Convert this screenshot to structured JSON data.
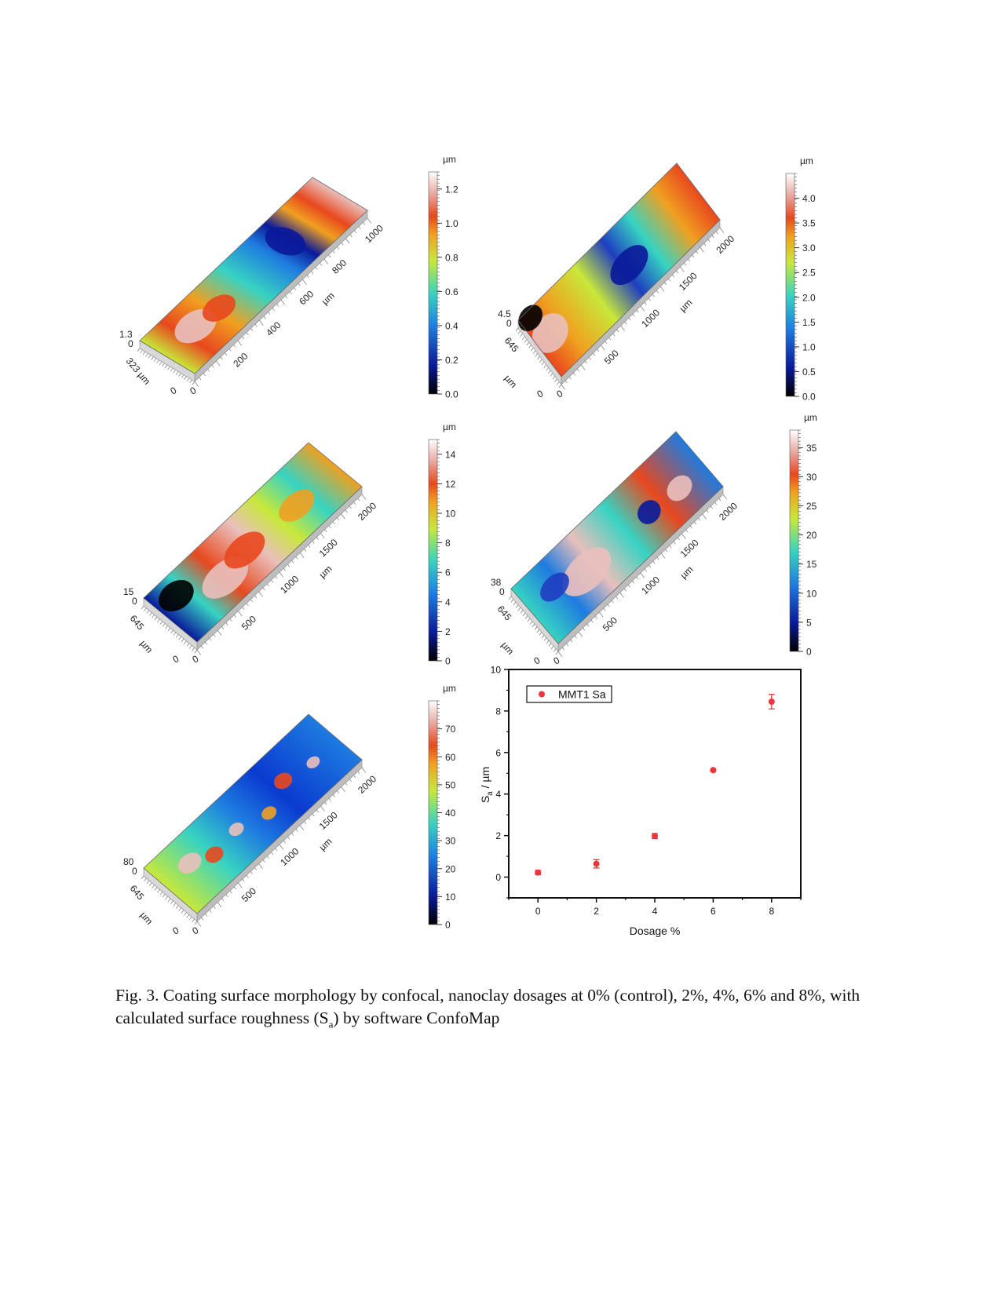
{
  "panels": [
    {
      "dosage_pct": 0,
      "height_label": "1.3",
      "zero_label": "0",
      "width_label": "323",
      "unit_left": "µm",
      "unit_axis": "µm",
      "origin_labels": [
        "0",
        "0"
      ],
      "length_ticks": [
        "200",
        "400",
        "600",
        "800",
        "1000"
      ],
      "colorbar": {
        "unit": "µm",
        "ticks": [
          "0.0",
          "0.2",
          "0.4",
          "0.6",
          "0.8",
          "1.0",
          "1.2"
        ]
      }
    },
    {
      "dosage_pct": 2,
      "height_label": "4.5",
      "zero_label": "0",
      "width_label": "645",
      "unit_left": "µm",
      "unit_axis": "µm",
      "origin_labels": [
        "0",
        "0"
      ],
      "length_ticks": [
        "500",
        "1000",
        "1500",
        "2000"
      ],
      "colorbar": {
        "unit": "µm",
        "ticks": [
          "0.0",
          "0.5",
          "1.0",
          "1.5",
          "2.0",
          "2.5",
          "3.0",
          "3.5",
          "4.0"
        ]
      }
    },
    {
      "dosage_pct": 4,
      "height_label": "15",
      "zero_label": "0",
      "width_label": "645",
      "unit_left": "µm",
      "unit_axis": "µm",
      "origin_labels": [
        "0",
        "0"
      ],
      "length_ticks": [
        "500",
        "1000",
        "1500",
        "2000"
      ],
      "colorbar": {
        "unit": "µm",
        "ticks": [
          "0",
          "2",
          "4",
          "6",
          "8",
          "10",
          "12",
          "14"
        ]
      }
    },
    {
      "dosage_pct": 6,
      "height_label": "38",
      "zero_label": "0",
      "width_label": "645",
      "unit_left": "µm",
      "unit_axis": "µm",
      "origin_labels": [
        "0",
        "0"
      ],
      "length_ticks": [
        "500",
        "1000",
        "1500",
        "2000"
      ],
      "colorbar": {
        "unit": "µm",
        "ticks": [
          "0",
          "5",
          "10",
          "15",
          "20",
          "25",
          "30",
          "35"
        ]
      }
    },
    {
      "dosage_pct": 8,
      "height_label": "80",
      "zero_label": "0",
      "width_label": "645",
      "unit_left": "µm",
      "unit_axis": "µm",
      "origin_labels": [
        "0",
        "0"
      ],
      "length_ticks": [
        "500",
        "1000",
        "1500",
        "2000"
      ],
      "colorbar": {
        "unit": "µm",
        "ticks": [
          "0",
          "10",
          "20",
          "30",
          "40",
          "50",
          "60",
          "70"
        ]
      }
    }
  ],
  "chart_data": {
    "type": "scatter",
    "title": "",
    "xlabel": "Dosage %",
    "ylabel": "Sa / µm",
    "ylabel_main": "S",
    "ylabel_sub": "a",
    "ylabel_rest": " / µm",
    "xlim": [
      -1,
      9
    ],
    "ylim": [
      -1,
      10
    ],
    "x_ticks": [
      0,
      2,
      4,
      6,
      8
    ],
    "y_ticks": [
      0,
      2,
      4,
      6,
      8,
      10
    ],
    "grid": false,
    "legend_position": "top-left",
    "series": [
      {
        "name": "MMT1 Sa",
        "color": "#e8383d",
        "x": [
          0,
          2,
          4,
          6,
          8
        ],
        "y": [
          0.22,
          0.64,
          1.98,
          5.15,
          8.45
        ],
        "error": [
          0.1,
          0.2,
          0.12,
          0.05,
          0.35
        ]
      }
    ]
  },
  "caption": {
    "part1": "Fig. 3. Coating surface morphology by confocal, nanoclay dosages at 0% (control), 2%, 4%, 6% and 8%, with calculated surface roughness (S",
    "sub": "a",
    "part2": ") by software ConfoMap"
  }
}
